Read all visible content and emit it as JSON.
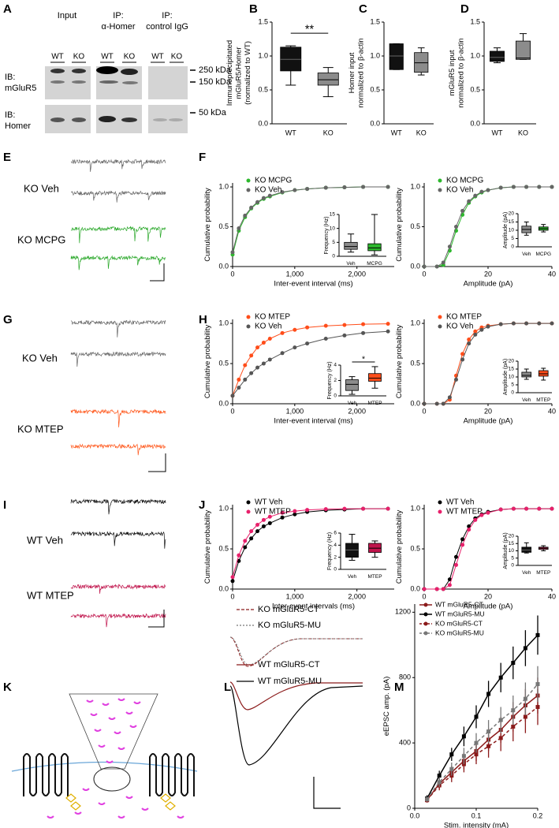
{
  "panel_labels": [
    "A",
    "B",
    "C",
    "D",
    "E",
    "F",
    "G",
    "H",
    "I",
    "J",
    "K",
    "L",
    "M"
  ],
  "blot": {
    "groups": [
      [
        "Input"
      ],
      [
        "IP:",
        "α-Homer"
      ],
      [
        "IP:",
        "control IgG"
      ]
    ],
    "lanes": [
      "WT",
      "KO",
      "WT",
      "KO",
      "WT",
      "KO"
    ],
    "blots": [
      [
        "IB:",
        "mGluR5"
      ],
      [
        "IB:",
        "Homer"
      ]
    ],
    "markers": [
      "250 kDa",
      "150 kDa",
      "50 kDa"
    ]
  },
  "trace_labels": [
    [
      "KO Veh",
      "KO MCPG"
    ],
    [
      "KO Veh",
      "KO MTEP"
    ],
    [
      "WT Veh",
      "WT MTEP"
    ]
  ],
  "L_legend": [
    "KO mGluR5-CT",
    "KO mGluR5-MU",
    "WT mGluR5-CT",
    "WT mGluR5-MU"
  ],
  "chart_data": [
    {
      "type": "box",
      "ylabel": [
        "Immunoprecipitated",
        "mGluR5/Homer",
        "(normalized to WT)"
      ],
      "categories": [
        "WT",
        "KO"
      ],
      "colors": [
        "#111111",
        "#8c8c8c"
      ],
      "boxes": [
        {
          "min": 0.57,
          "q1": 0.78,
          "median": 0.95,
          "q3": 1.13,
          "max": 1.15
        },
        {
          "min": 0.4,
          "q1": 0.57,
          "median": 0.65,
          "q3": 0.75,
          "max": 0.83
        }
      ],
      "annotation": "**",
      "ylim": [
        0,
        1.5
      ],
      "yticks": [
        {
          "value": 0,
          "label": "0.0"
        },
        {
          "value": 0.5,
          "label": "0.5"
        },
        {
          "value": 1,
          "label": "1.0"
        },
        {
          "value": 1.5,
          "label": "1.5"
        }
      ]
    },
    {
      "type": "box",
      "ylabel": [
        "Homer input",
        "normalized to β-actin"
      ],
      "categories": [
        "WT",
        "KO"
      ],
      "colors": [
        "#111111",
        "#8c8c8c"
      ],
      "boxes": [
        {
          "min": 0.8,
          "q1": 0.8,
          "median": 1.0,
          "q3": 1.18,
          "max": 1.18
        },
        {
          "min": 0.72,
          "q1": 0.76,
          "median": 0.9,
          "q3": 1.05,
          "max": 1.12
        }
      ],
      "ylim": [
        0,
        1.5
      ],
      "yticks": [
        {
          "value": 0,
          "label": "0.0"
        },
        {
          "value": 0.5,
          "label": "0.5"
        },
        {
          "value": 1,
          "label": "1.0"
        },
        {
          "value": 1.5,
          "label": "1.5"
        }
      ]
    },
    {
      "type": "box",
      "ylabel": [
        "mGluR5 input",
        "normalized to β-actin"
      ],
      "categories": [
        "WT",
        "KO"
      ],
      "colors": [
        "#111111",
        "#8c8c8c"
      ],
      "boxes": [
        {
          "min": 0.9,
          "q1": 0.92,
          "median": 0.98,
          "q3": 1.07,
          "max": 1.12
        },
        {
          "min": 0.95,
          "q1": 0.95,
          "median": 0.97,
          "q3": 1.22,
          "max": 1.33
        }
      ],
      "ylim": [
        0,
        1.5
      ],
      "yticks": [
        {
          "value": 0,
          "label": "0.0"
        },
        {
          "value": 0.5,
          "label": "0.5"
        },
        {
          "value": 1,
          "label": "1.0"
        },
        {
          "value": 1.5,
          "label": "1.5"
        }
      ]
    },
    {
      "type": "line",
      "xlabel": "Inter-event interval (ms)",
      "ylabel": [
        "Cumulative probability"
      ],
      "legend": "upper left",
      "x": [
        0,
        100,
        200,
        300,
        400,
        500,
        600,
        800,
        1000,
        1200,
        1500,
        1800,
        2100,
        2500
      ],
      "series": [
        {
          "name": "KO MCPG",
          "color": "#2db82d",
          "values": [
            0.15,
            0.45,
            0.62,
            0.73,
            0.8,
            0.85,
            0.88,
            0.93,
            0.96,
            0.975,
            0.99,
            0.995,
            1,
            1
          ]
        },
        {
          "name": "KO Veh",
          "color": "#666666",
          "values": [
            0.18,
            0.48,
            0.64,
            0.74,
            0.81,
            0.86,
            0.89,
            0.935,
            0.96,
            0.975,
            0.99,
            0.995,
            1,
            1
          ]
        }
      ],
      "xlim": [
        0,
        2600
      ],
      "xticks": [
        0,
        {
          "value": 1000,
          "label": "1,000"
        },
        {
          "value": 2000,
          "label": "2,000"
        }
      ],
      "ylim": [
        0,
        1.05
      ],
      "yticks": [
        {
          "value": 0,
          "label": "0.0"
        },
        {
          "value": 0.5,
          "label": "0.5"
        },
        {
          "value": 1,
          "label": "1.0"
        }
      ]
    },
    {
      "type": "box",
      "ylabel": [
        "Frequency (Hz)"
      ],
      "categories": [
        "Veh",
        "MCPG"
      ],
      "colors": [
        "#8c8c8c",
        "#2db82d"
      ],
      "boxes": [
        {
          "min": 1.5,
          "q1": 2.5,
          "median": 3.5,
          "q3": 5,
          "max": 8
        },
        {
          "min": 0.5,
          "q1": 2,
          "median": 3,
          "q3": 4.5,
          "max": 15
        }
      ],
      "ylim": [
        0,
        15
      ],
      "yticks": [
        0,
        5,
        10,
        15
      ]
    },
    {
      "type": "line",
      "xlabel": "Amplitude (pA)",
      "ylabel": [
        "Cumulative probability"
      ],
      "legend": "upper left",
      "x": [
        0,
        4,
        6,
        8,
        10,
        12,
        14,
        16,
        18,
        20,
        24,
        28,
        32,
        36,
        40
      ],
      "series": [
        {
          "name": "KO MCPG",
          "color": "#2db82d",
          "values": [
            0,
            0,
            0.02,
            0.2,
            0.45,
            0.65,
            0.8,
            0.88,
            0.93,
            0.96,
            0.99,
            1,
            1,
            1,
            1
          ]
        },
        {
          "name": "KO Veh",
          "color": "#666666",
          "values": [
            0,
            0,
            0.05,
            0.25,
            0.5,
            0.7,
            0.82,
            0.89,
            0.94,
            0.96,
            0.99,
            1,
            1,
            1,
            1
          ]
        }
      ],
      "xlim": [
        0,
        40
      ],
      "xticks": [
        0,
        20,
        40
      ],
      "ylim": [
        0,
        1.05
      ],
      "yticks": [
        {
          "value": 0,
          "label": "0.0"
        },
        {
          "value": 0.5,
          "label": "0.5"
        },
        {
          "value": 1,
          "label": "1.0"
        }
      ]
    },
    {
      "type": "box",
      "ylabel": [
        "Amplitude (pA)"
      ],
      "categories": [
        "Veh",
        "MCPG"
      ],
      "colors": [
        "#8c8c8c",
        "#2db82d"
      ],
      "boxes": [
        {
          "min": 7,
          "q1": 8.5,
          "median": 10.5,
          "q3": 12.5,
          "max": 15
        },
        {
          "min": 9,
          "q1": 10,
          "median": 11,
          "q3": 12,
          "max": 13.5
        }
      ],
      "ylim": [
        0,
        20
      ],
      "yticks": [
        0,
        5,
        10,
        15,
        20
      ]
    },
    {
      "type": "line",
      "xlabel": "Inter-event interval (ms)",
      "ylabel": [
        "Cumulative probability"
      ],
      "legend": "upper left",
      "x": [
        0,
        100,
        200,
        300,
        400,
        500,
        600,
        800,
        1000,
        1200,
        1500,
        1800,
        2100,
        2500
      ],
      "series": [
        {
          "name": "KO MTEP",
          "color": "#ff4d1a",
          "values": [
            0.1,
            0.3,
            0.48,
            0.6,
            0.7,
            0.76,
            0.81,
            0.88,
            0.92,
            0.95,
            0.97,
            0.98,
            0.99,
            0.995
          ]
        },
        {
          "name": "KO Veh",
          "color": "#555555",
          "values": [
            0.1,
            0.2,
            0.3,
            0.38,
            0.45,
            0.5,
            0.55,
            0.63,
            0.7,
            0.75,
            0.81,
            0.85,
            0.88,
            0.9
          ]
        }
      ],
      "xlim": [
        0,
        2600
      ],
      "xticks": [
        0,
        {
          "value": 1000,
          "label": "1,000"
        },
        {
          "value": 2000,
          "label": "2,000"
        }
      ],
      "ylim": [
        0,
        1.05
      ],
      "yticks": [
        {
          "value": 0,
          "label": "0.0"
        },
        {
          "value": 0.5,
          "label": "0.5"
        },
        {
          "value": 1,
          "label": "1.0"
        }
      ]
    },
    {
      "type": "box",
      "ylabel": [
        "Frequency (Hz)"
      ],
      "categories": [
        "Veh",
        "MTEP"
      ],
      "colors": [
        "#8c8c8c",
        "#ff4d1a"
      ],
      "boxes": [
        {
          "min": 0.2,
          "q1": 0.7,
          "median": 1.5,
          "q3": 2.1,
          "max": 2.5
        },
        {
          "min": 1.0,
          "q1": 1.9,
          "median": 2.3,
          "q3": 2.9,
          "max": 3.8
        }
      ],
      "annotation": "*",
      "ylim": [
        0,
        4
      ],
      "yticks": [
        0,
        2,
        4
      ]
    },
    {
      "type": "line",
      "xlabel": "Amplitude (pA)",
      "ylabel": [
        "Cumulative probability"
      ],
      "legend": "upper left",
      "x": [
        0,
        4,
        6,
        8,
        10,
        12,
        14,
        16,
        18,
        20,
        24,
        28,
        32,
        36,
        40
      ],
      "series": [
        {
          "name": "KO MTEP",
          "color": "#ff4d1a",
          "values": [
            0,
            0,
            0,
            0.05,
            0.35,
            0.62,
            0.8,
            0.9,
            0.95,
            0.97,
            0.99,
            1,
            1,
            1,
            1
          ]
        },
        {
          "name": "KO Veh",
          "color": "#555555",
          "values": [
            0,
            0,
            0,
            0.08,
            0.3,
            0.55,
            0.75,
            0.86,
            0.92,
            0.96,
            0.99,
            1,
            1,
            1,
            1
          ]
        }
      ],
      "xlim": [
        0,
        40
      ],
      "xticks": [
        0,
        20,
        40
      ],
      "ylim": [
        0,
        1.05
      ],
      "yticks": [
        {
          "value": 0,
          "label": "0.0"
        },
        {
          "value": 0.5,
          "label": "0.5"
        },
        {
          "value": 1,
          "label": "1.0"
        }
      ]
    },
    {
      "type": "box",
      "ylabel": [
        "Amplitude (pA)"
      ],
      "categories": [
        "Veh",
        "MTEP"
      ],
      "colors": [
        "#8c8c8c",
        "#ff4d1a"
      ],
      "boxes": [
        {
          "min": 8.5,
          "q1": 10,
          "median": 11,
          "q3": 13,
          "max": 15
        },
        {
          "min": 8,
          "q1": 10.5,
          "median": 12,
          "q3": 14,
          "max": 15.5
        }
      ],
      "ylim": [
        0,
        20
      ],
      "yticks": [
        0,
        5,
        10,
        15,
        20
      ]
    },
    {
      "type": "line",
      "xlabel": "Inter-event intervals (ms)",
      "ylabel": [
        "Cumulative probability"
      ],
      "legend": "upper left",
      "x": [
        0,
        100,
        200,
        300,
        400,
        500,
        600,
        800,
        1000,
        1200,
        1500,
        1800,
        2100,
        2500
      ],
      "series": [
        {
          "name": "WT Veh",
          "color": "#000000",
          "values": [
            0.1,
            0.35,
            0.52,
            0.63,
            0.72,
            0.78,
            0.82,
            0.89,
            0.93,
            0.96,
            0.98,
            0.99,
            1,
            1
          ]
        },
        {
          "name": "WT MTEP",
          "color": "#e8206b",
          "values": [
            0.15,
            0.42,
            0.6,
            0.72,
            0.8,
            0.86,
            0.9,
            0.95,
            0.97,
            0.985,
            0.995,
            1,
            1,
            1
          ]
        }
      ],
      "xlim": [
        0,
        2600
      ],
      "xticks": [
        0,
        {
          "value": 1000,
          "label": "1,000"
        },
        {
          "value": 2000,
          "label": "2,000"
        }
      ],
      "ylim": [
        0,
        1.05
      ],
      "yticks": [
        {
          "value": 0,
          "label": "0.0"
        },
        {
          "value": 0.5,
          "label": "0.5"
        },
        {
          "value": 1,
          "label": "1.0"
        }
      ]
    },
    {
      "type": "box",
      "ylabel": [
        "Frequency (Hz)"
      ],
      "categories": [
        "Veh",
        "MTEP"
      ],
      "colors": [
        "#111111",
        "#c0144c"
      ],
      "boxes": [
        {
          "min": 1.5,
          "q1": 2,
          "median": 3.2,
          "q3": 4.3,
          "max": 5.8
        },
        {
          "min": 2,
          "q1": 2.8,
          "median": 3.5,
          "q3": 4.3,
          "max": 4.7
        }
      ],
      "ylim": [
        0,
        6
      ],
      "yticks": [
        0,
        2,
        4,
        6
      ]
    },
    {
      "type": "line",
      "xlabel": "Amplitude (pA)",
      "ylabel": [
        "Cumulative probability"
      ],
      "legend": "upper left",
      "x": [
        0,
        4,
        6,
        8,
        10,
        12,
        14,
        16,
        18,
        20,
        24,
        28,
        32,
        36,
        40
      ],
      "series": [
        {
          "name": "WT Veh",
          "color": "#000000",
          "values": [
            0,
            0,
            0,
            0.12,
            0.4,
            0.62,
            0.78,
            0.88,
            0.93,
            0.96,
            0.99,
            1,
            1,
            1,
            1
          ]
        },
        {
          "name": "WT MTEP",
          "color": "#e8206b",
          "values": [
            0,
            0,
            0,
            0.05,
            0.3,
            0.55,
            0.74,
            0.86,
            0.92,
            0.95,
            0.99,
            1,
            1,
            1,
            1
          ]
        }
      ],
      "xlim": [
        0,
        40
      ],
      "xticks": [
        0,
        20,
        40
      ],
      "ylim": [
        0,
        1.05
      ],
      "yticks": [
        {
          "value": 0,
          "label": "0.0"
        },
        {
          "value": 0.5,
          "label": "0.5"
        },
        {
          "value": 1,
          "label": "1.0"
        }
      ]
    },
    {
      "type": "box",
      "ylabel": [
        "Amplitude (pA)"
      ],
      "categories": [
        "Veh",
        "MTEP"
      ],
      "colors": [
        "#111111",
        "#c0144c"
      ],
      "boxes": [
        {
          "min": 8.5,
          "q1": 9,
          "median": 10.5,
          "q3": 12.5,
          "max": 15.5
        },
        {
          "min": 10,
          "q1": 11,
          "median": 11.8,
          "q3": 12.5,
          "max": 13.5
        }
      ],
      "ylim": [
        0,
        20
      ],
      "yticks": [
        0,
        5,
        10,
        15,
        20
      ]
    },
    {
      "type": "line",
      "xlabel": "Stim. intensity (mA)",
      "ylabel": [
        "eEPSC amp. (pA)"
      ],
      "legend": "upper left",
      "errorbars": true,
      "x": [
        0.02,
        0.04,
        0.06,
        0.08,
        0.1,
        0.12,
        0.14,
        0.16,
        0.18,
        0.2
      ],
      "series": [
        {
          "name": "WT mGluR5-CT",
          "color": "#8b1a1a",
          "dashed": false,
          "values": [
            50,
            150,
            220,
            290,
            350,
            420,
            480,
            560,
            630,
            690
          ],
          "errors": [
            15,
            30,
            40,
            50,
            60,
            70,
            80,
            90,
            100,
            110
          ]
        },
        {
          "name": "WT mGluR5-MU",
          "color": "#000000",
          "dashed": false,
          "values": [
            60,
            200,
            330,
            440,
            560,
            700,
            800,
            890,
            980,
            1060
          ],
          "errors": [
            20,
            30,
            40,
            60,
            70,
            80,
            90,
            100,
            110,
            120
          ]
        },
        {
          "name": "KO mGluR5-CT",
          "color": "#8b1a1a",
          "dashed": true,
          "values": [
            50,
            140,
            200,
            270,
            330,
            380,
            430,
            500,
            560,
            620
          ],
          "errors": [
            15,
            30,
            40,
            50,
            60,
            70,
            80,
            90,
            100,
            110
          ]
        },
        {
          "name": "KO mGluR5-MU",
          "color": "#777777",
          "dashed": true,
          "values": [
            55,
            160,
            240,
            320,
            400,
            470,
            540,
            600,
            670,
            760
          ],
          "errors": [
            15,
            30,
            40,
            50,
            60,
            70,
            80,
            90,
            100,
            110
          ]
        }
      ],
      "xlim": [
        0,
        0.2
      ],
      "xticks": [
        {
          "value": 0,
          "label": "0.0"
        },
        {
          "value": 0.1,
          "label": "0.1"
        },
        {
          "value": 0.2,
          "label": "0.2"
        }
      ],
      "ylim": [
        0,
        1250
      ],
      "yticks": [
        0,
        400,
        800,
        1200
      ]
    }
  ]
}
